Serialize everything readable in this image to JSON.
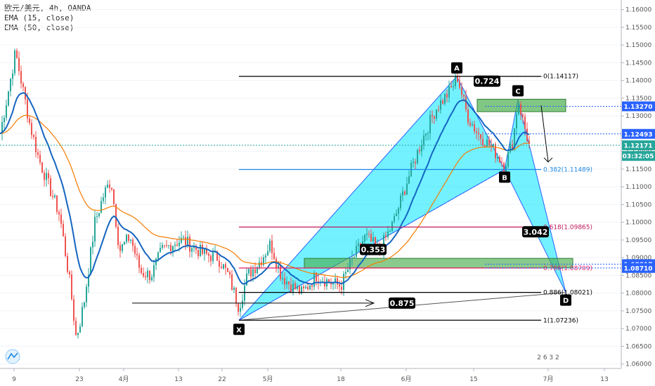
{
  "chart_data": {
    "type": "candlestick",
    "symbol_line": "欧元/美元, 4h, OANDA",
    "indicators": [
      "EMA (15, close)",
      "EMA (50, close)"
    ],
    "indicator_colors": {
      "ema15": "#1565c0",
      "ema50": "#f57c00"
    },
    "candle_colors": {
      "up": "#26a69a",
      "down": "#ef5350"
    },
    "y_axis": {
      "range": [
        1.0538,
        1.1627
      ],
      "ticks": [
        "1.06000",
        "1.06500",
        "1.07000",
        "1.07500",
        "1.08000",
        "1.08500",
        "1.09000",
        "1.09500",
        "1.10000",
        "1.10500",
        "1.11000",
        "1.11500",
        "1.12000",
        "1.12500",
        "1.13000",
        "1.13500",
        "1.14000",
        "1.14500",
        "1.15000",
        "1.15500",
        "1.16000"
      ]
    },
    "x_axis": {
      "tick_labels": [
        "9",
        "23",
        "4月",
        "13",
        "22",
        "5月",
        "18",
        "6月",
        "15",
        "7月",
        "13"
      ]
    },
    "price_markers": [
      {
        "label": "1.13270",
        "value": 1.1327,
        "style": "dotted"
      },
      {
        "label": "1.12493",
        "value": 1.12493,
        "style": "dotted"
      },
      {
        "label": "1.12171",
        "value": 1.12171,
        "style": "current"
      },
      {
        "label": "03:32:05",
        "value": 1.1187,
        "style": "countdown"
      },
      {
        "label": "1.08817",
        "value": 1.08817,
        "style": "dotted"
      },
      {
        "label": "1.08710",
        "value": 1.0871,
        "style": "dotted"
      }
    ],
    "fib_levels": [
      {
        "label": "0(1.14117)",
        "value": 1.14117,
        "color": "#000000"
      },
      {
        "label": "0.382(1.11489)",
        "value": 1.11489,
        "color": "#1e88e5"
      },
      {
        "label": "0.618(1.09865)",
        "value": 1.09865,
        "color": "#c2185b"
      },
      {
        "label": "0.786(1.08709)",
        "value": 1.08709,
        "color": "#e91e63"
      },
      {
        "label": "0.886(1.08021)",
        "value": 1.08021,
        "color": "#000000"
      },
      {
        "label": "1(1.07236)",
        "value": 1.07236,
        "color": "#000000"
      }
    ],
    "harmonic_points": [
      {
        "name": "X",
        "value": 1.07236
      },
      {
        "name": "A",
        "value": 1.14117
      },
      {
        "name": "B",
        "value": 1.1149
      },
      {
        "name": "C",
        "value": 1.1347
      },
      {
        "name": "D",
        "value": 1.0802
      }
    ],
    "ratios": [
      "0.724",
      "3.042",
      "0.353",
      "0.875"
    ],
    "zones": [
      {
        "name": "upper",
        "from": 1.1312,
        "to": 1.1347
      },
      {
        "name": "lower",
        "from": 1.0871,
        "to": 1.0898
      }
    ],
    "extra_text": [
      "2 6 3 2"
    ]
  }
}
